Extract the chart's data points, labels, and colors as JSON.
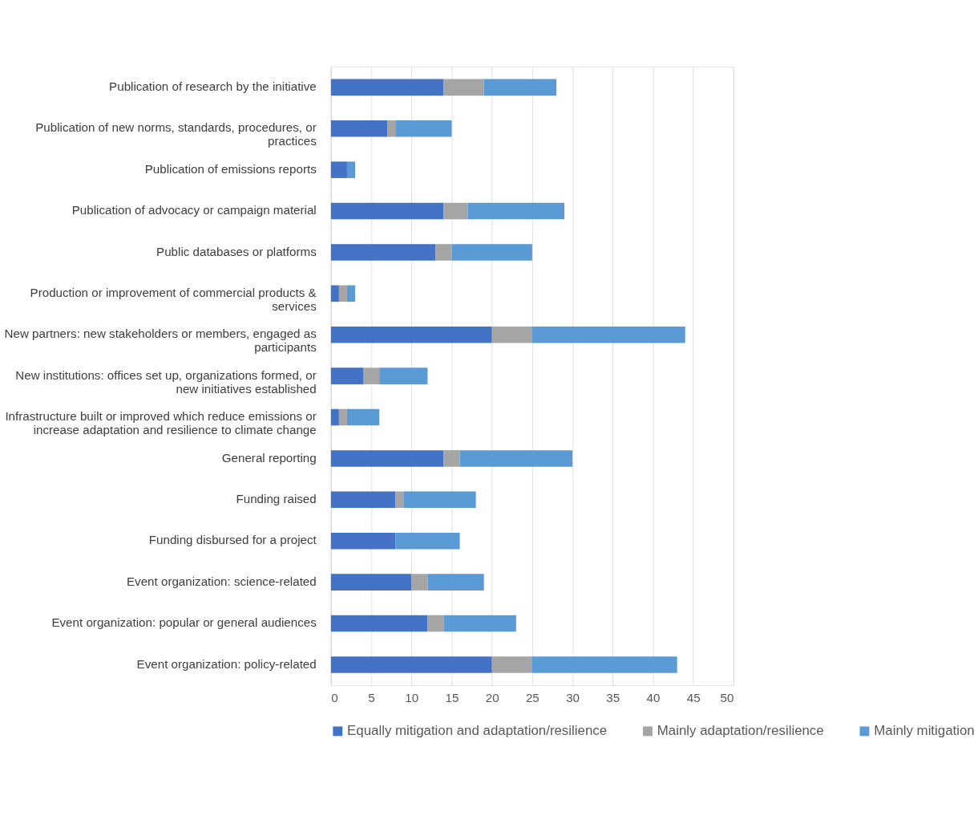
{
  "chart_data": {
    "type": "bar",
    "orientation": "horizontal",
    "stacked": true,
    "categories": [
      "Publication of research by the initiative",
      "Publication of new norms, standards, procedures, or practices",
      "Publication of emissions reports",
      "Publication of advocacy or campaign material",
      "Public databases or platforms",
      "Production or improvement of commercial products & services",
      "New partners: new stakeholders or members, engaged as participants",
      "New institutions: offices set up, organizations formed, or new initiatives established",
      "Infrastructure built or improved which reduce emissions or increase adaptation and resilience to climate change",
      "General reporting",
      "Funding raised",
      "Funding disbursed for a project",
      "Event organization: science-related",
      "Event organization: popular or general audiences",
      "Event organization: policy-related"
    ],
    "series": [
      {
        "name": "Equally mitigation and adaptation/resilience",
        "color": "#4472c4",
        "values": [
          14,
          7,
          2,
          14,
          13,
          1,
          20,
          4,
          1,
          14,
          8,
          8,
          10,
          12,
          20
        ]
      },
      {
        "name": "Mainly adaptation/resilience",
        "color": "#a5a5a5",
        "values": [
          5,
          1,
          0,
          3,
          2,
          1,
          5,
          2,
          1,
          2,
          1,
          0,
          2,
          2,
          5
        ]
      },
      {
        "name": "Mainly mitigation",
        "color": "#5b9bd5",
        "values": [
          9,
          7,
          1,
          12,
          10,
          1,
          19,
          6,
          4,
          14,
          9,
          8,
          7,
          9,
          18
        ]
      }
    ],
    "xlim": [
      0,
      50
    ],
    "xticks": [
      0,
      5,
      10,
      15,
      20,
      25,
      30,
      35,
      40,
      45,
      50
    ],
    "grid": "x",
    "legend": "bottom"
  }
}
